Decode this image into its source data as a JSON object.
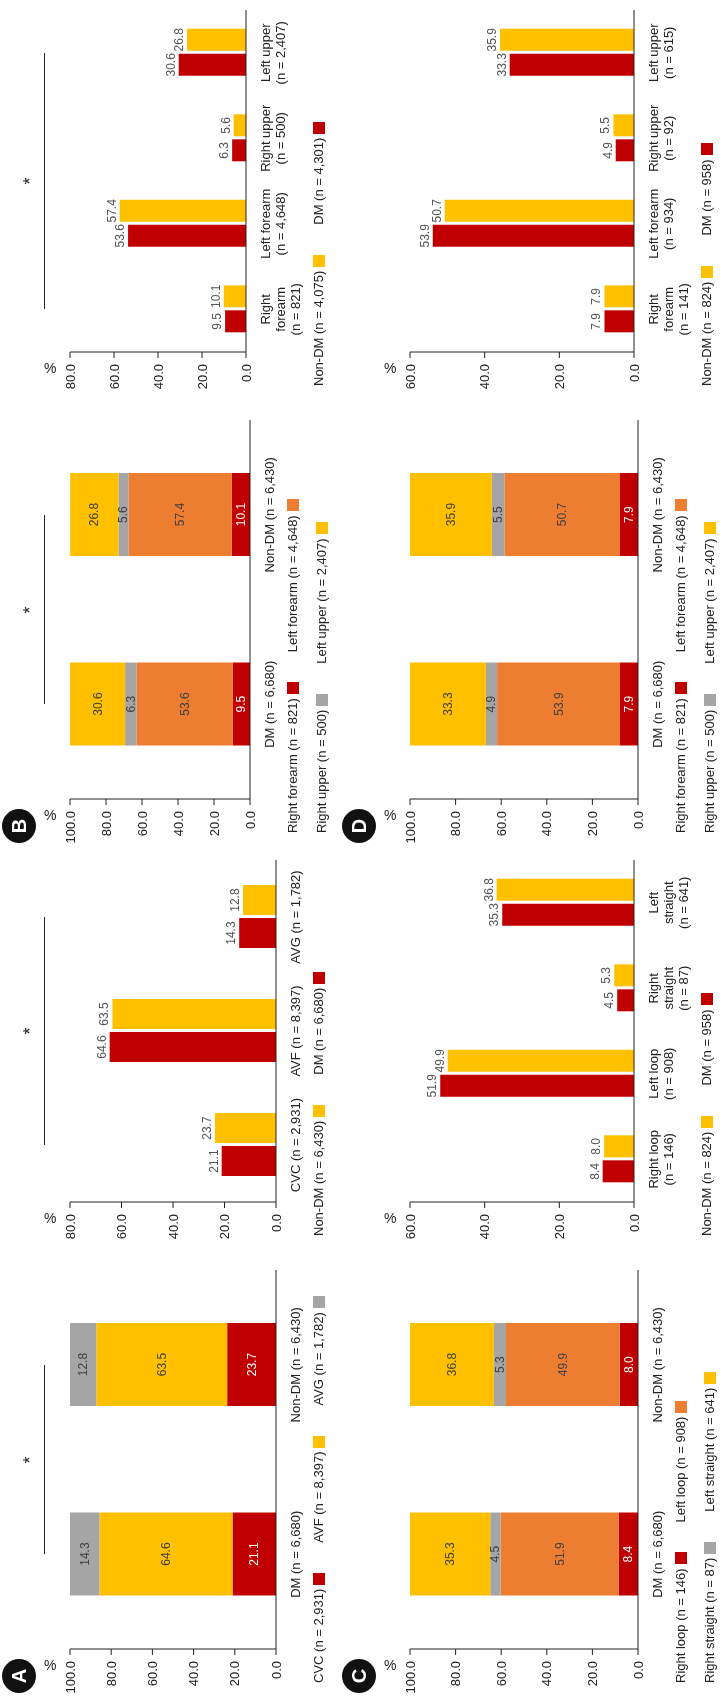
{
  "chart_data": [
    {
      "type": "bar",
      "title": "A",
      "stacked": true,
      "orientation": "horizontal",
      "xlabel": "%",
      "categories": [
        "Non-DM (n = 6,430)",
        "DM (n = 6,680)"
      ],
      "series": [
        {
          "name": "CVC (n = 2,931)",
          "color": "#c00000",
          "values": [
            23.7,
            21.1
          ]
        },
        {
          "name": "AVF (n = 8,397)",
          "color": "#ffc000",
          "values": [
            63.5,
            64.6
          ]
        },
        {
          "name": "AVG (n = 1,782)",
          "color": "#a5a5a5",
          "values": [
            12.8,
            14.3
          ]
        }
      ],
      "xlim": [
        100,
        0
      ],
      "xticks": [
        {
          "value": 0,
          "label": "0.0"
        },
        {
          "value": 20,
          "label": "20.0"
        },
        {
          "value": 40,
          "label": "40.0"
        },
        {
          "value": 60,
          "label": "60.0"
        },
        {
          "value": 80,
          "label": "80.0"
        },
        {
          "value": 100,
          "label": "100.0"
        }
      ],
      "legend": "right",
      "data_labels": true,
      "annotations": [
        "*"
      ]
    },
    {
      "type": "bar",
      "orientation": "horizontal",
      "xlabel": "%",
      "categories": [
        "AVG (n = 1,782)",
        "AVF (n = 8,397)",
        "CVC (n = 2,931)"
      ],
      "series": [
        {
          "name": "Non-DM (n = 6,430)",
          "color": "#ffc000",
          "values": [
            12.8,
            63.5,
            23.7
          ]
        },
        {
          "name": "DM (n = 6,680)",
          "color": "#c00000",
          "values": [
            14.3,
            64.6,
            21.1
          ]
        }
      ],
      "xlim": [
        80,
        0
      ],
      "xticks": [
        {
          "value": 0,
          "label": "0.0"
        },
        {
          "value": 20,
          "label": "20.0"
        },
        {
          "value": 40,
          "label": "40.0"
        },
        {
          "value": 60,
          "label": "60.0"
        },
        {
          "value": 80,
          "label": "80.0"
        }
      ],
      "legend": "right",
      "data_labels": true,
      "annotations": [
        "*"
      ]
    },
    {
      "type": "bar",
      "title": "B",
      "stacked": true,
      "orientation": "horizontal",
      "xlabel": "%",
      "categories": [
        "Non-DM (n = 6,430)",
        "DM (n = 6,680)"
      ],
      "series": [
        {
          "name": "Right forearm (n = 821)",
          "color": "#c00000",
          "values": [
            10.1,
            9.5
          ]
        },
        {
          "name": "Left forearm (n = 4,648)",
          "color": "#ed7d31",
          "values": [
            57.4,
            53.6
          ]
        },
        {
          "name": "Right upper (n = 500)",
          "color": "#a5a5a5",
          "values": [
            5.6,
            6.3
          ]
        },
        {
          "name": "Left upper (n = 2,407)",
          "color": "#ffc000",
          "values": [
            26.8,
            30.6
          ]
        }
      ],
      "xlim": [
        100,
        0
      ],
      "xticks": [
        {
          "value": 0,
          "label": "0.0"
        },
        {
          "value": 20,
          "label": "20.0"
        },
        {
          "value": 40,
          "label": "40.0"
        },
        {
          "value": 60,
          "label": "60.0"
        },
        {
          "value": 80,
          "label": "80.0"
        },
        {
          "value": 100,
          "label": "100.0"
        }
      ],
      "legend": "right",
      "data_labels": true,
      "annotations": [
        "*"
      ]
    },
    {
      "type": "bar",
      "orientation": "horizontal",
      "xlabel": "%",
      "categories": [
        "Left upper (n = 2,407)",
        "Right upper (n = 500)",
        "Left forearm (n = 4,648)",
        "Right forearm (n = 821)"
      ],
      "series": [
        {
          "name": "Non-DM (n = 4,075)",
          "color": "#ffc000",
          "values": [
            26.8,
            5.6,
            57.4,
            10.1
          ]
        },
        {
          "name": "DM (n = 4,301)",
          "color": "#c00000",
          "values": [
            30.6,
            6.3,
            53.6,
            9.5
          ]
        }
      ],
      "xlim": [
        80,
        0
      ],
      "xticks": [
        {
          "value": 0,
          "label": "0.0"
        },
        {
          "value": 20,
          "label": "20.0"
        },
        {
          "value": 40,
          "label": "40.0"
        },
        {
          "value": 60,
          "label": "60.0"
        },
        {
          "value": 80,
          "label": "80.0"
        }
      ],
      "legend": "right",
      "data_labels": true,
      "annotations": [
        "*"
      ]
    },
    {
      "type": "bar",
      "title": "C",
      "stacked": true,
      "orientation": "horizontal",
      "xlabel": "%",
      "categories": [
        "Non-DM (n = 6,430)",
        "DM (n = 6,680)"
      ],
      "series": [
        {
          "name": "Right loop (n = 146)",
          "color": "#c00000",
          "values": [
            8.0,
            8.4
          ],
          "value_labels": [
            "8.0",
            "8.4"
          ]
        },
        {
          "name": "Left loop (n = 908)",
          "color": "#ed7d31",
          "values": [
            49.9,
            51.9
          ]
        },
        {
          "name": "Right straight (n = 87)",
          "color": "#a5a5a5",
          "values": [
            5.3,
            4.5
          ]
        },
        {
          "name": "Left straight (n = 641)",
          "color": "#ffc000",
          "values": [
            36.8,
            35.3
          ]
        }
      ],
      "xlim": [
        100,
        0
      ],
      "xticks": [
        {
          "value": 0,
          "label": "0.0"
        },
        {
          "value": 20,
          "label": "20.0"
        },
        {
          "value": 40,
          "label": "40.0"
        },
        {
          "value": 60,
          "label": "60.0"
        },
        {
          "value": 80,
          "label": "80.0"
        },
        {
          "value": 100,
          "label": "100.0"
        }
      ],
      "legend": "right",
      "data_labels": true
    },
    {
      "type": "bar",
      "orientation": "horizontal",
      "xlabel": "%",
      "categories": [
        "Left straight (n = 641)",
        "Right straight (n = 87)",
        "Left loop (n = 908)",
        "Right loop (n = 146)"
      ],
      "series": [
        {
          "name": "Non-DM (n = 824)",
          "color": "#ffc000",
          "values": [
            36.8,
            5.3,
            49.9,
            8.0
          ],
          "value_labels": [
            "36.8",
            "5.3",
            "49.9",
            "8.0"
          ]
        },
        {
          "name": "DM (n = 958)",
          "color": "#c00000",
          "values": [
            35.3,
            4.5,
            51.9,
            8.4
          ]
        }
      ],
      "xlim": [
        60,
        0
      ],
      "xticks": [
        {
          "value": 0,
          "label": "0.0"
        },
        {
          "value": 20,
          "label": "20.0"
        },
        {
          "value": 40,
          "label": "40.0"
        },
        {
          "value": 60,
          "label": "60.0"
        }
      ],
      "legend": "right",
      "data_labels": true
    },
    {
      "type": "bar",
      "title": "D",
      "stacked": true,
      "orientation": "horizontal",
      "xlabel": "%",
      "categories": [
        "Non-DM (n = 6,430)",
        "DM (n = 6,680)"
      ],
      "series": [
        {
          "name": "Right forearm (n = 821)",
          "color": "#c00000",
          "values": [
            7.9,
            7.9
          ]
        },
        {
          "name": "Left forearm (n = 4,648)",
          "color": "#ed7d31",
          "values": [
            50.7,
            53.9
          ]
        },
        {
          "name": "Right upper (n = 500)",
          "color": "#a5a5a5",
          "values": [
            5.5,
            4.9
          ]
        },
        {
          "name": "Left upper (n = 2,407)",
          "color": "#ffc000",
          "values": [
            35.9,
            33.3
          ]
        }
      ],
      "xlim": [
        100,
        0
      ],
      "xticks": [
        {
          "value": 0,
          "label": "0.0"
        },
        {
          "value": 20,
          "label": "20.0"
        },
        {
          "value": 40,
          "label": "40.0"
        },
        {
          "value": 60,
          "label": "60.0"
        },
        {
          "value": 80,
          "label": "80.0"
        },
        {
          "value": 100,
          "label": "100.0"
        }
      ],
      "legend": "right",
      "data_labels": true
    },
    {
      "type": "bar",
      "orientation": "horizontal",
      "xlabel": "%",
      "categories": [
        "Left upper (n = 615)",
        "Right upper (n = 92)",
        "Left forearm (n = 934)",
        "Right forearm (n = 141)"
      ],
      "series": [
        {
          "name": "Non-DM (n = 824)",
          "color": "#ffc000",
          "values": [
            35.9,
            5.5,
            50.7,
            7.9
          ]
        },
        {
          "name": "DM (n = 958)",
          "color": "#c00000",
          "values": [
            33.3,
            4.9,
            53.9,
            7.9
          ]
        }
      ],
      "xlim": [
        60,
        0
      ],
      "xticks": [
        {
          "value": 0,
          "label": "0.0"
        },
        {
          "value": 20,
          "label": "20.0"
        },
        {
          "value": 40,
          "label": "40.0"
        },
        {
          "value": 60,
          "label": "60.0"
        }
      ],
      "legend": "right",
      "data_labels": true
    }
  ]
}
